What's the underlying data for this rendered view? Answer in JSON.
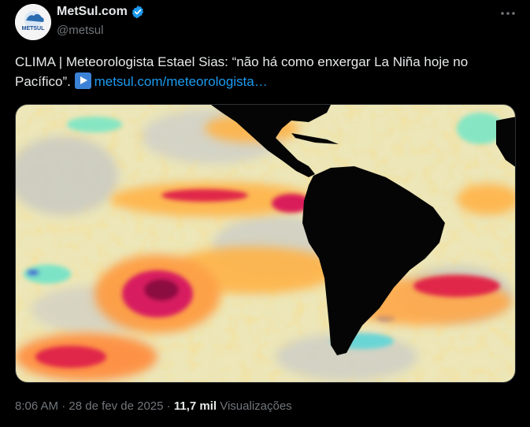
{
  "author": {
    "display_name": "MetSul.com",
    "handle": "@metsul",
    "avatar_text": "METSUL"
  },
  "tweet": {
    "text_main": "CLIMA | Meteorologista Estael Sias: “não há como enxergar La Niña hoje no Pacífico”.",
    "link_text": "metsul.com/meteorologista…",
    "media_label": "Mapa de anomalia de temperatura da superfície do mar"
  },
  "meta": {
    "time": "8:06 AM",
    "separator": "·",
    "date": "28 de fev de 2025",
    "views_count": "11,7 mil",
    "views_label": "Visualizações"
  },
  "icons": {
    "verified": "verified-badge-icon",
    "more": "more-options-icon",
    "play": "play-button-icon"
  },
  "colors": {
    "link": "#1d9bf0",
    "verified": "#1d9bf0",
    "secondary_text": "#71767b"
  }
}
